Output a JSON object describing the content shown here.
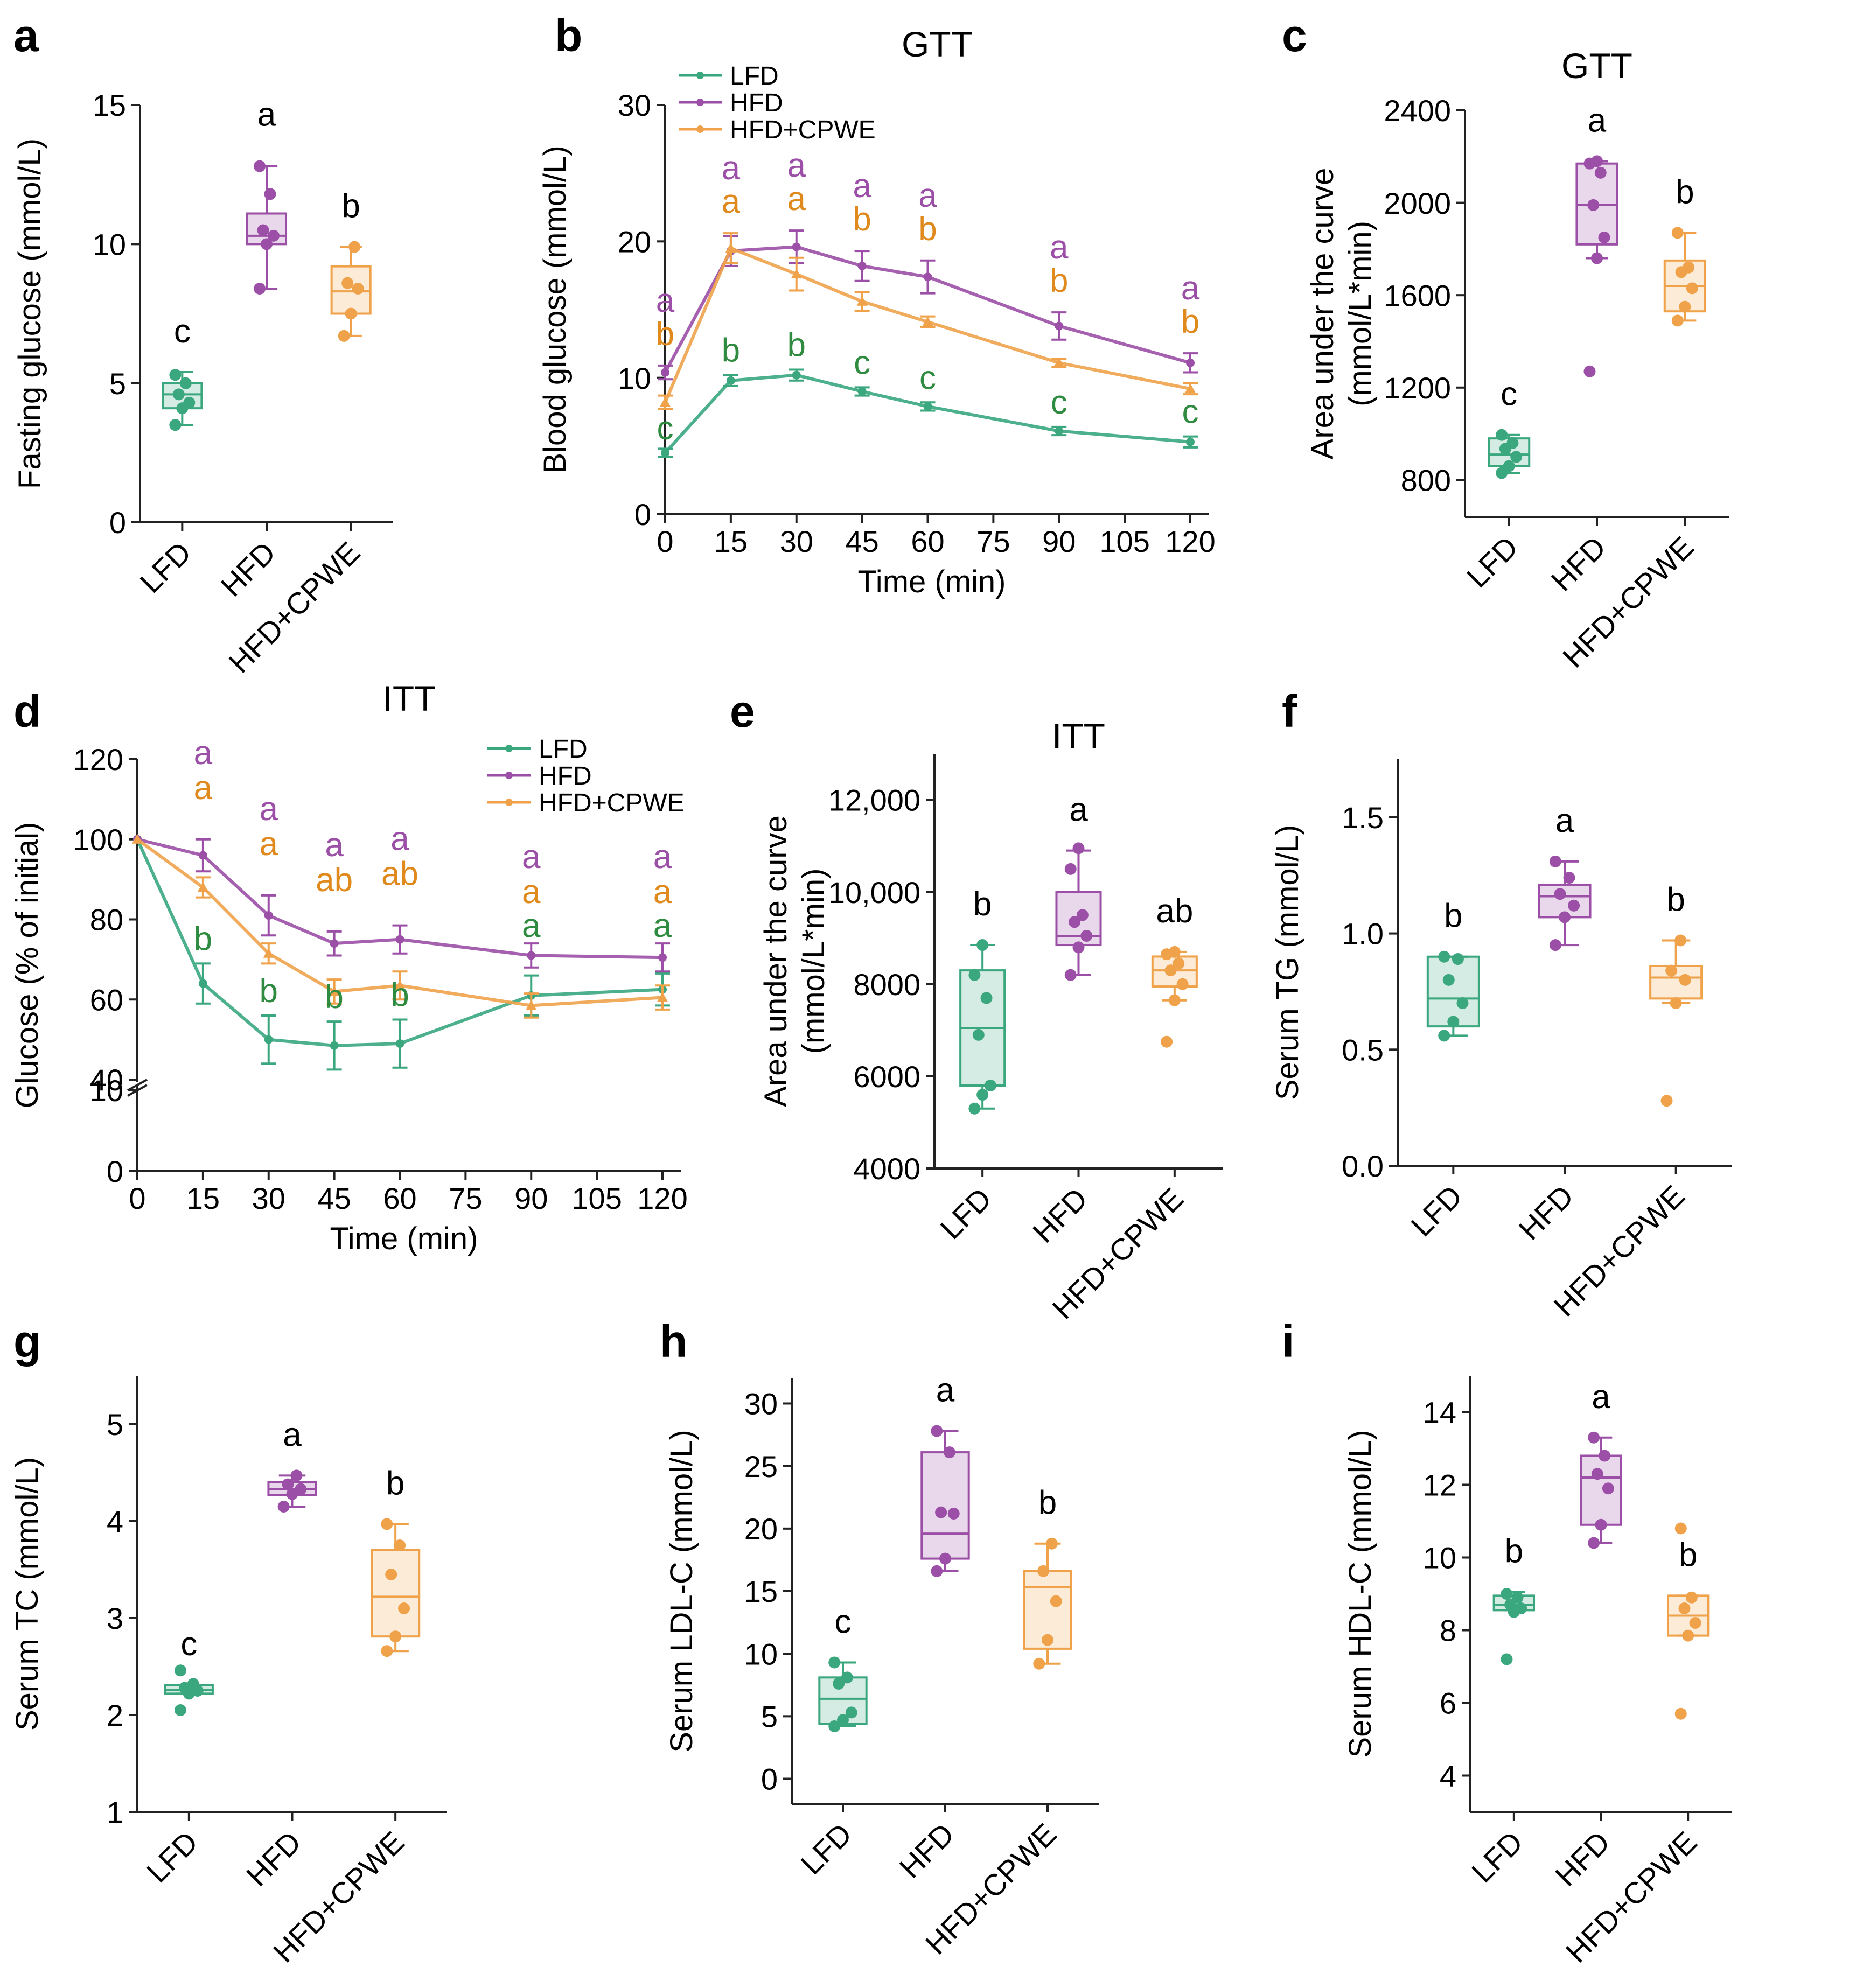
{
  "colors": {
    "LFD": "#3aa77f",
    "HFD": "#9b4fa6",
    "CPWE": "#f0a24a",
    "sigGreen": "#2e8b3f",
    "sigOrange": "#e08a1e",
    "axis": "#222222"
  },
  "chart_data": [
    {
      "id": "a",
      "type": "box",
      "panel_label": "a",
      "title": "",
      "ylabel": "Fasting glucose (mmol/L)",
      "ylim": [
        0,
        15
      ],
      "yticks": [
        0,
        5,
        10,
        15
      ],
      "categories": [
        "LFD",
        "HFD",
        "HFD+CPWE"
      ],
      "boxes": [
        {
          "q1": 4.1,
          "median": 4.6,
          "q3": 5.0,
          "whisker_low": 3.5,
          "whisker_high": 5.4,
          "points": [
            3.5,
            4.1,
            4.3,
            4.6,
            5.0,
            5.3
          ],
          "letter": "c"
        },
        {
          "q1": 10.0,
          "median": 10.3,
          "q3": 11.1,
          "whisker_low": 8.4,
          "whisker_high": 12.8,
          "points": [
            8.4,
            10.0,
            10.3,
            10.5,
            11.8,
            12.8
          ],
          "letter": "a"
        },
        {
          "q1": 7.5,
          "median": 8.3,
          "q3": 9.2,
          "whisker_low": 6.7,
          "whisker_high": 9.9,
          "points": [
            6.7,
            7.5,
            8.4,
            8.6,
            9.9
          ],
          "letter": "b"
        }
      ]
    },
    {
      "id": "b",
      "type": "line",
      "panel_label": "b",
      "title": "GTT",
      "xlabel": "Time (min)",
      "ylabel": "Blood glucose (mmol/L)",
      "xlim": [
        0,
        120
      ],
      "ylim": [
        0,
        30
      ],
      "xticks": [
        0,
        15,
        30,
        45,
        60,
        75,
        90,
        105,
        120
      ],
      "yticks": [
        0,
        10,
        20,
        30
      ],
      "x": [
        0,
        15,
        30,
        60,
        45,
        90,
        120
      ],
      "series": [
        {
          "name": "LFD",
          "x": [
            0,
            15,
            30,
            45,
            60,
            90,
            120
          ],
          "values": [
            4.5,
            9.8,
            10.2,
            9.0,
            7.9,
            6.1,
            5.3
          ],
          "err": [
            0.3,
            0.4,
            0.4,
            0.3,
            0.3,
            0.3,
            0.4
          ],
          "letters": [
            "c",
            "b",
            "b",
            "c",
            "c",
            "c",
            "c"
          ]
        },
        {
          "name": "HFD",
          "x": [
            0,
            15,
            30,
            45,
            60,
            90,
            120
          ],
          "values": [
            10.4,
            19.3,
            19.6,
            18.2,
            17.4,
            13.8,
            11.1
          ],
          "err": [
            0.5,
            1.1,
            1.2,
            1.1,
            1.2,
            1.0,
            0.7
          ],
          "letters": [
            "a",
            "a",
            "a",
            "a",
            "a",
            "a",
            "a"
          ]
        },
        {
          "name": "HFD+CPWE",
          "x": [
            0,
            15,
            30,
            45,
            60,
            90,
            120
          ],
          "values": [
            8.2,
            19.5,
            17.6,
            15.6,
            14.1,
            11.1,
            9.2
          ],
          "err": [
            0.5,
            1.1,
            1.2,
            0.7,
            0.4,
            0.3,
            0.4
          ],
          "letters": [
            "b",
            "a",
            "a",
            "b",
            "b",
            "b",
            "b"
          ]
        }
      ],
      "legend": [
        "LFD",
        "HFD",
        "HFD+CPWE"
      ]
    },
    {
      "id": "c",
      "type": "box",
      "panel_label": "c",
      "title": "GTT",
      "ylabel": "Area under the curve (mmol/L*min)",
      "ylim": [
        640,
        2400
      ],
      "yticks": [
        800,
        1200,
        1600,
        2000,
        2400
      ],
      "categories": [
        "LFD",
        "HFD",
        "HFD+CPWE"
      ],
      "boxes": [
        {
          "q1": 860,
          "median": 910,
          "q3": 980,
          "whisker_low": 830,
          "whisker_high": 995,
          "points": [
            830,
            860,
            900,
            935,
            960,
            995
          ],
          "letter": "c"
        },
        {
          "q1": 1820,
          "median": 1990,
          "q3": 2170,
          "whisker_low": 1760,
          "whisker_high": 2180,
          "points": [
            1270,
            1760,
            1850,
            1990,
            2130,
            2170,
            2180
          ],
          "letter": "a"
        },
        {
          "q1": 1530,
          "median": 1640,
          "q3": 1750,
          "whisker_low": 1490,
          "whisker_high": 1870,
          "points": [
            1490,
            1550,
            1630,
            1700,
            1720,
            1870
          ],
          "letter": "b"
        }
      ]
    },
    {
      "id": "d",
      "type": "line",
      "panel_label": "d",
      "title": "ITT",
      "xlabel": "Time (min)",
      "ylabel": "Glucose (% of initial)",
      "xlim": [
        0,
        120
      ],
      "ylim": [
        0,
        120
      ],
      "axis_break": [
        10,
        40
      ],
      "xticks": [
        0,
        15,
        30,
        45,
        60,
        75,
        90,
        105,
        120
      ],
      "yticks": [
        0,
        10,
        40,
        60,
        80,
        100,
        120
      ],
      "series": [
        {
          "name": "LFD",
          "x": [
            0,
            15,
            30,
            45,
            60,
            90,
            120
          ],
          "values": [
            100,
            64,
            50,
            48.5,
            49,
            61,
            62.5
          ],
          "err": [
            0,
            5,
            6,
            6,
            6,
            5,
            4
          ],
          "letters": [
            "",
            "b",
            "b",
            "b",
            "b",
            "a",
            "a"
          ]
        },
        {
          "name": "HFD",
          "x": [
            0,
            15,
            30,
            45,
            60,
            90,
            120
          ],
          "values": [
            100,
            96,
            81,
            74,
            75,
            71,
            70.5
          ],
          "err": [
            0,
            4,
            5,
            3,
            3.5,
            3,
            3.5
          ],
          "letters": [
            "",
            "a",
            "a",
            "a",
            "a",
            "a",
            "a"
          ]
        },
        {
          "name": "HFD+CPWE",
          "x": [
            0,
            15,
            30,
            45,
            60,
            90,
            120
          ],
          "values": [
            100,
            88,
            71.5,
            62,
            63.5,
            58.5,
            60.5
          ],
          "err": [
            0,
            2.5,
            2.5,
            3,
            3.5,
            3,
            3
          ],
          "letters": [
            "",
            "a",
            "a",
            "ab",
            "ab",
            "a",
            "a"
          ]
        }
      ],
      "legend": [
        "LFD",
        "HFD",
        "HFD+CPWE"
      ]
    },
    {
      "id": "e",
      "type": "box",
      "panel_label": "e",
      "title": "ITT",
      "ylabel": "Area under the curve (mmol/L*min)",
      "ylim": [
        4000,
        13000
      ],
      "yticks": [
        4000,
        6000,
        8000,
        10000,
        12000
      ],
      "ytick_labels": [
        "4000",
        "6000",
        "8000",
        "10,000",
        "12,000"
      ],
      "categories": [
        "LFD",
        "HFD",
        "HFD+CPWE"
      ],
      "boxes": [
        {
          "q1": 5800,
          "median": 7050,
          "q3": 8300,
          "whisker_low": 5300,
          "whisker_high": 8850,
          "points": [
            5300,
            5600,
            5800,
            6900,
            7700,
            8200,
            8850
          ],
          "letter": "b"
        },
        {
          "q1": 8850,
          "median": 9050,
          "q3": 10000,
          "whisker_low": 8200,
          "whisker_high": 10900,
          "points": [
            8200,
            8800,
            9050,
            9350,
            9500,
            10500,
            10950
          ],
          "letter": "a"
        },
        {
          "q1": 7950,
          "median": 8300,
          "q3": 8600,
          "whisker_low": 7650,
          "whisker_high": 8700,
          "points": [
            6750,
            7650,
            8000,
            8300,
            8450,
            8650,
            8700
          ],
          "letter": "ab"
        }
      ]
    },
    {
      "id": "f",
      "type": "box",
      "panel_label": "f",
      "title": "",
      "ylabel": "Serum TG (mmol/L)",
      "ylim": [
        0,
        1.75
      ],
      "yticks": [
        0.0,
        0.5,
        1.0,
        1.5
      ],
      "ytick_labels": [
        "0.0",
        "0.5",
        "1.0",
        "1.5"
      ],
      "categories": [
        "LFD",
        "HFD",
        "HFD+CPWE"
      ],
      "boxes": [
        {
          "q1": 0.6,
          "median": 0.72,
          "q3": 0.9,
          "whisker_low": 0.56,
          "whisker_high": 0.9,
          "points": [
            0.56,
            0.62,
            0.7,
            0.8,
            0.89,
            0.9
          ],
          "letter": "b"
        },
        {
          "q1": 1.07,
          "median": 1.16,
          "q3": 1.21,
          "whisker_low": 0.95,
          "whisker_high": 1.31,
          "points": [
            0.95,
            1.07,
            1.12,
            1.17,
            1.24,
            1.31
          ],
          "letter": "a"
        },
        {
          "q1": 0.72,
          "median": 0.81,
          "q3": 0.86,
          "whisker_low": 0.7,
          "whisker_high": 0.97,
          "points": [
            0.28,
            0.7,
            0.8,
            0.84,
            0.97
          ],
          "letter": "b"
        }
      ]
    },
    {
      "id": "g",
      "type": "box",
      "panel_label": "g",
      "title": "",
      "ylabel": "Serum TC (mmol/L)",
      "ylim": [
        1,
        5.5
      ],
      "yticks": [
        1,
        2,
        3,
        4,
        5
      ],
      "categories": [
        "LFD",
        "HFD",
        "HFD+CPWE"
      ],
      "boxes": [
        {
          "q1": 2.22,
          "median": 2.26,
          "q3": 2.31,
          "whisker_low": 2.22,
          "whisker_high": 2.31,
          "points": [
            2.05,
            2.22,
            2.25,
            2.28,
            2.32,
            2.46
          ],
          "letter": "c"
        },
        {
          "q1": 4.27,
          "median": 4.33,
          "q3": 4.4,
          "whisker_low": 4.15,
          "whisker_high": 4.47,
          "points": [
            4.15,
            4.28,
            4.33,
            4.38,
            4.47
          ],
          "letter": "a"
        },
        {
          "q1": 2.81,
          "median": 3.22,
          "q3": 3.7,
          "whisker_low": 2.66,
          "whisker_high": 3.97,
          "points": [
            2.66,
            2.81,
            3.1,
            3.45,
            3.75,
            3.97
          ],
          "letter": "b"
        }
      ]
    },
    {
      "id": "h",
      "type": "box",
      "panel_label": "h",
      "title": "",
      "ylabel": "Serum LDL-C (mmol/L)",
      "ylim": [
        -2,
        32
      ],
      "yticks": [
        0,
        5,
        10,
        15,
        20,
        25,
        30
      ],
      "categories": [
        "LFD",
        "HFD",
        "HFD+CPWE"
      ],
      "boxes": [
        {
          "q1": 4.4,
          "median": 6.4,
          "q3": 8.1,
          "whisker_low": 4.2,
          "whisker_high": 9.3,
          "points": [
            4.2,
            4.7,
            5.3,
            7.6,
            8.1,
            9.3
          ],
          "letter": "c"
        },
        {
          "q1": 17.6,
          "median": 19.6,
          "q3": 26.1,
          "whisker_low": 16.6,
          "whisker_high": 27.8,
          "points": [
            16.6,
            17.6,
            21.2,
            21.3,
            26.1,
            27.8
          ],
          "letter": "a"
        },
        {
          "q1": 10.4,
          "median": 15.3,
          "q3": 16.6,
          "whisker_low": 9.2,
          "whisker_high": 18.8,
          "points": [
            9.2,
            11.1,
            14.2,
            16.6,
            18.8
          ],
          "letter": "b"
        }
      ]
    },
    {
      "id": "i",
      "type": "box",
      "panel_label": "i",
      "title": "",
      "ylabel": "Serum HDL-C (mmol/L)",
      "ylim": [
        3,
        15
      ],
      "yticks": [
        4,
        6,
        8,
        10,
        12,
        14
      ],
      "categories": [
        "LFD",
        "HFD",
        "HFD+CPWE"
      ],
      "boxes": [
        {
          "q1": 8.55,
          "median": 8.7,
          "q3": 8.95,
          "whisker_low": 8.55,
          "whisker_high": 9.05,
          "points": [
            7.2,
            8.5,
            8.6,
            8.7,
            8.9,
            9.0
          ],
          "letter": "b"
        },
        {
          "q1": 10.9,
          "median": 12.2,
          "q3": 12.8,
          "whisker_low": 10.4,
          "whisker_high": 13.3,
          "points": [
            10.4,
            10.9,
            11.9,
            12.3,
            12.8,
            13.3
          ],
          "letter": "a"
        },
        {
          "q1": 7.85,
          "median": 8.4,
          "q3": 8.95,
          "whisker_low": 7.85,
          "whisker_high": 8.95,
          "points": [
            5.7,
            7.85,
            8.2,
            8.6,
            8.9,
            10.8
          ],
          "letter": "b"
        }
      ]
    }
  ]
}
